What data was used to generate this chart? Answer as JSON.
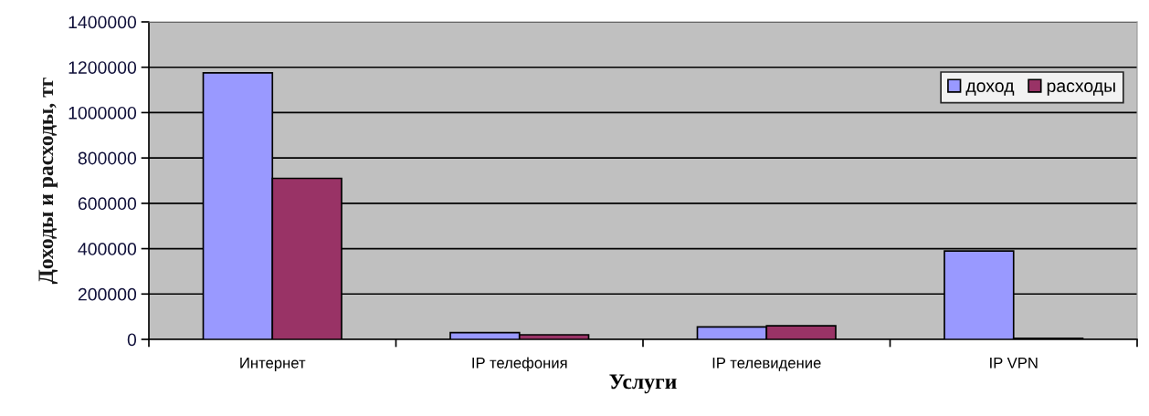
{
  "chart_data": {
    "type": "bar",
    "xlabel": "Услуги",
    "ylabel": "Доходы и расходы, тг",
    "categories": [
      "Интернет",
      "IP телефония",
      "IP телевидение",
      "IP VPN"
    ],
    "series": [
      {
        "name": "доход",
        "color": "#9999ff",
        "values": [
          1175000,
          30000,
          55000,
          390000
        ]
      },
      {
        "name": "расходы",
        "color": "#993366",
        "values": [
          710000,
          20000,
          60000,
          5000
        ]
      }
    ],
    "ylim": [
      0,
      1400000
    ],
    "yticks": [
      0,
      200000,
      400000,
      600000,
      800000,
      1000000,
      1200000,
      1400000
    ],
    "grid": "y",
    "legend": "top right"
  }
}
